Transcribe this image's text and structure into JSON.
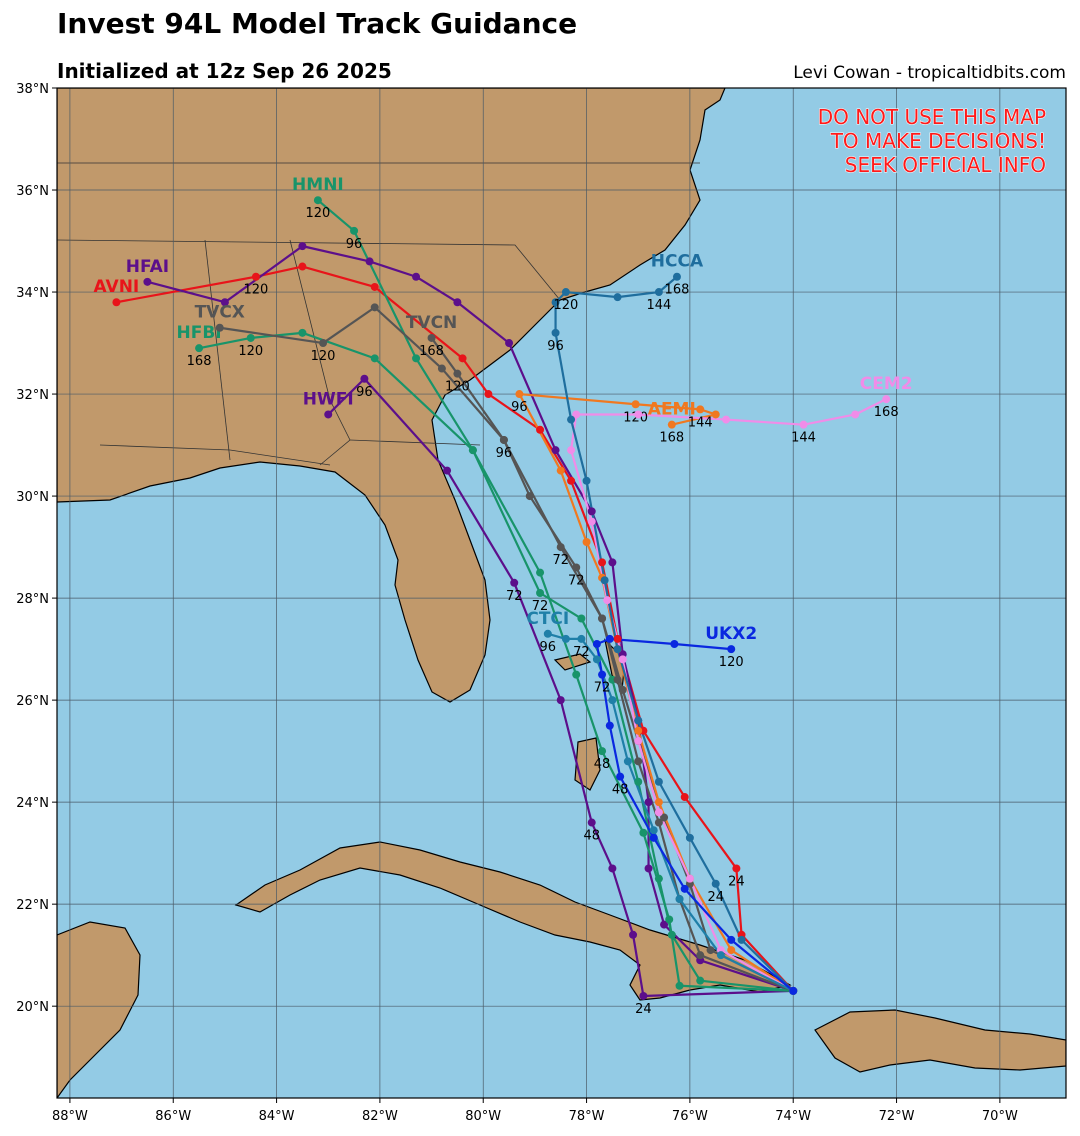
{
  "chart_data": {
    "type": "track",
    "title": "Invest 94L Model Track Guidance",
    "subtitle": "Initialized at 12z Sep 26 2025",
    "credit": "Levi Cowan - tropicaltidbits.com",
    "warning": [
      "DO NOT USE THIS MAP",
      "TO MAKE DECISIONS!",
      "SEEK OFFICIAL INFO"
    ],
    "warning_color": "#ff1a1a",
    "grid": true,
    "xlim": [
      -88.25,
      -68.72
    ],
    "ylim": [
      18.2,
      38
    ],
    "xticks": [
      {
        "value": -88,
        "label": "88°W"
      },
      {
        "value": -86,
        "label": "86°W"
      },
      {
        "value": -84,
        "label": "84°W"
      },
      {
        "value": -82,
        "label": "82°W"
      },
      {
        "value": -80,
        "label": "80°W"
      },
      {
        "value": -78,
        "label": "78°W"
      },
      {
        "value": -76,
        "label": "76°W"
      },
      {
        "value": -74,
        "label": "74°W"
      },
      {
        "value": -72,
        "label": "72°W"
      },
      {
        "value": -70,
        "label": "70°W"
      }
    ],
    "yticks": [
      {
        "value": 20,
        "label": "20°N"
      },
      {
        "value": 22,
        "label": "22°N"
      },
      {
        "value": 24,
        "label": "24°N"
      },
      {
        "value": 26,
        "label": "26°N"
      },
      {
        "value": 28,
        "label": "28°N"
      },
      {
        "value": 30,
        "label": "30°N"
      },
      {
        "value": 32,
        "label": "32°N"
      },
      {
        "value": 34,
        "label": "34°N"
      },
      {
        "value": 36,
        "label": "36°N"
      },
      {
        "value": 38,
        "label": "38°N"
      }
    ],
    "series": [
      {
        "name": "AVNI",
        "color": "#e8141a",
        "lon": [
          -74.0,
          -75.0,
          -75.1,
          -76.1,
          -76.9,
          -77.4,
          -77.7,
          -78.3,
          -78.9,
          -79.9,
          -80.4,
          -82.1,
          -83.5,
          -84.4,
          -87.1
        ],
        "lat": [
          20.3,
          21.4,
          22.7,
          24.1,
          25.4,
          27.2,
          28.7,
          30.3,
          31.3,
          32.0,
          32.7,
          34.1,
          34.5,
          34.3,
          33.8
        ],
        "labels": [
          null,
          null,
          24,
          null,
          null,
          null,
          null,
          null,
          null,
          null,
          null,
          null,
          null,
          120,
          null
        ]
      },
      {
        "name": "HFAI",
        "color": "#5c0f8b",
        "lon": [
          -74.0,
          -75.8,
          -76.5,
          -76.8,
          -76.8,
          -77.0,
          -77.3,
          -77.5,
          -77.9,
          -78.6,
          -79.5,
          -80.5,
          -81.3,
          -82.2,
          -83.5,
          -85.0,
          -86.5
        ],
        "lat": [
          20.3,
          20.9,
          21.6,
          22.7,
          24.0,
          25.6,
          26.9,
          28.7,
          29.7,
          30.9,
          33.0,
          33.8,
          34.3,
          34.6,
          34.9,
          33.8,
          34.2
        ],
        "labels": [
          null,
          null,
          null,
          null,
          null,
          null,
          null,
          null,
          null,
          null,
          null,
          null,
          null,
          null,
          null,
          null,
          null
        ]
      },
      {
        "name": "HWFI",
        "color": "#5c0f8b",
        "lon": [
          -74.0,
          -76.9,
          -77.1,
          -77.5,
          -77.9,
          -78.5,
          -79.4,
          -80.7,
          -82.3,
          -83.0
        ],
        "lat": [
          20.3,
          20.2,
          21.4,
          22.7,
          23.6,
          26.0,
          28.3,
          30.5,
          32.3,
          31.6
        ],
        "labels": [
          null,
          24,
          null,
          null,
          48,
          null,
          72,
          null,
          96,
          null
        ]
      },
      {
        "name": "HMNI",
        "color": "#18946a",
        "lon": [
          -74.0,
          -75.8,
          -76.35,
          -76.6,
          -77.0,
          -77.5,
          -78.1,
          -78.9,
          -80.2,
          -81.3,
          -82.5,
          -83.2
        ],
        "lat": [
          20.3,
          20.5,
          21.4,
          22.5,
          24.4,
          26.4,
          27.6,
          28.1,
          30.9,
          32.7,
          35.2,
          35.8
        ],
        "labels": [
          null,
          null,
          null,
          null,
          null,
          null,
          null,
          72,
          null,
          null,
          96,
          120
        ]
      },
      {
        "name": "HFBI",
        "color": "#18946a",
        "lon": [
          -74.0,
          -76.2,
          -76.4,
          -76.9,
          -77.7,
          -78.2,
          -78.9,
          -80.2,
          -82.1,
          -83.5,
          -84.5,
          -85.5
        ],
        "lat": [
          20.3,
          20.4,
          21.7,
          23.4,
          25.0,
          26.5,
          28.5,
          30.9,
          32.7,
          33.2,
          33.1,
          32.9
        ],
        "labels": [
          null,
          null,
          null,
          null,
          48,
          null,
          null,
          null,
          null,
          null,
          120,
          168
        ]
      },
      {
        "name": "TVCX",
        "color": "#555555",
        "lon": [
          -74.0,
          -75.8,
          -76.2,
          -76.6,
          -77.0,
          -77.4,
          -77.7,
          -78.2,
          -79.1,
          -79.6,
          -80.8,
          -82.1,
          -83.1,
          -85.1
        ],
        "lat": [
          20.3,
          21.0,
          22.1,
          23.6,
          24.8,
          26.4,
          27.6,
          28.6,
          30.0,
          31.1,
          32.5,
          33.7,
          33.0,
          33.3
        ],
        "labels": [
          null,
          null,
          null,
          null,
          null,
          null,
          null,
          72,
          null,
          null,
          null,
          null,
          120,
          null
        ]
      },
      {
        "name": "TVCN",
        "color": "#555555",
        "lon": [
          -74.0,
          -75.6,
          -76.0,
          -76.5,
          -77.0,
          -77.3,
          -77.7,
          -78.5,
          -79.6,
          -80.5,
          -81.0
        ],
        "lat": [
          20.3,
          21.1,
          22.4,
          23.7,
          25.2,
          26.2,
          27.6,
          29.0,
          31.1,
          32.4,
          33.1
        ],
        "labels": [
          null,
          null,
          null,
          null,
          null,
          null,
          null,
          72,
          96,
          120,
          168
        ]
      },
      {
        "name": "AEMI",
        "color": "#f07820",
        "lon": [
          -74.0,
          -75.2,
          -76.0,
          -76.6,
          -77.0,
          -77.4,
          -77.7,
          -78.0,
          -78.5,
          -79.3,
          -77.05,
          -75.8,
          -75.5,
          -76.35
        ],
        "lat": [
          20.3,
          21.1,
          22.5,
          24.0,
          25.4,
          27.0,
          28.4,
          29.1,
          30.5,
          32.0,
          31.8,
          31.7,
          31.6,
          31.4
        ],
        "labels": [
          null,
          null,
          null,
          null,
          null,
          null,
          null,
          null,
          null,
          96,
          120,
          144,
          null,
          168
        ]
      },
      {
        "name": "CEM2",
        "color": "#f08ce8",
        "lon": [
          -74.0,
          -75.4,
          -76.0,
          -76.6,
          -77.0,
          -77.3,
          -77.6,
          -77.9,
          -78.3,
          -78.2,
          -77.0,
          -75.3,
          -73.8,
          -72.8,
          -72.2
        ],
        "lat": [
          20.3,
          21.1,
          22.5,
          23.8,
          25.2,
          26.8,
          27.96,
          29.5,
          30.9,
          31.6,
          31.6,
          31.5,
          31.4,
          31.6,
          31.9
        ],
        "labels": [
          null,
          null,
          null,
          null,
          null,
          null,
          null,
          null,
          null,
          null,
          null,
          null,
          144,
          null,
          168
        ]
      },
      {
        "name": "HCCA",
        "color": "#1f6e9e",
        "lon": [
          -74.0,
          -75.0,
          -75.5,
          -76.0,
          -76.6,
          -77.0,
          -77.4,
          -77.65,
          -78.0,
          -78.3,
          -78.6,
          -78.6,
          -78.4,
          -77.4,
          -76.6,
          -76.25
        ],
        "lat": [
          20.3,
          21.3,
          22.4,
          23.3,
          24.4,
          25.6,
          27.0,
          28.35,
          30.3,
          31.5,
          33.2,
          33.8,
          34.0,
          33.9,
          34.0,
          34.3
        ],
        "labels": [
          null,
          null,
          24,
          null,
          null,
          null,
          null,
          null,
          null,
          null,
          96,
          null,
          120,
          null,
          144,
          168
        ]
      },
      {
        "name": "CTCI",
        "color": "#1f7fa8",
        "lon": [
          -74.0,
          -75.4,
          -76.2,
          -76.7,
          -77.2,
          -77.5,
          -77.8,
          -78.1,
          -78.4,
          -78.75
        ],
        "lat": [
          20.3,
          21.0,
          22.1,
          23.45,
          24.8,
          26.0,
          26.8,
          27.2,
          27.2,
          27.3
        ],
        "labels": [
          null,
          null,
          null,
          null,
          null,
          null,
          null,
          72,
          null,
          96
        ]
      },
      {
        "name": "UKX2",
        "color": "#0a28e0",
        "lon": [
          -74.0,
          -75.2,
          -76.1,
          -76.7,
          -77.35,
          -77.55,
          -77.7,
          -77.8,
          -77.55,
          -76.3,
          -75.2
        ],
        "lat": [
          20.3,
          21.3,
          22.3,
          23.3,
          24.5,
          25.5,
          26.5,
          27.1,
          27.2,
          27.1,
          27.0
        ],
        "labels": [
          null,
          null,
          null,
          null,
          48,
          null,
          72,
          null,
          null,
          null,
          120
        ]
      }
    ]
  }
}
